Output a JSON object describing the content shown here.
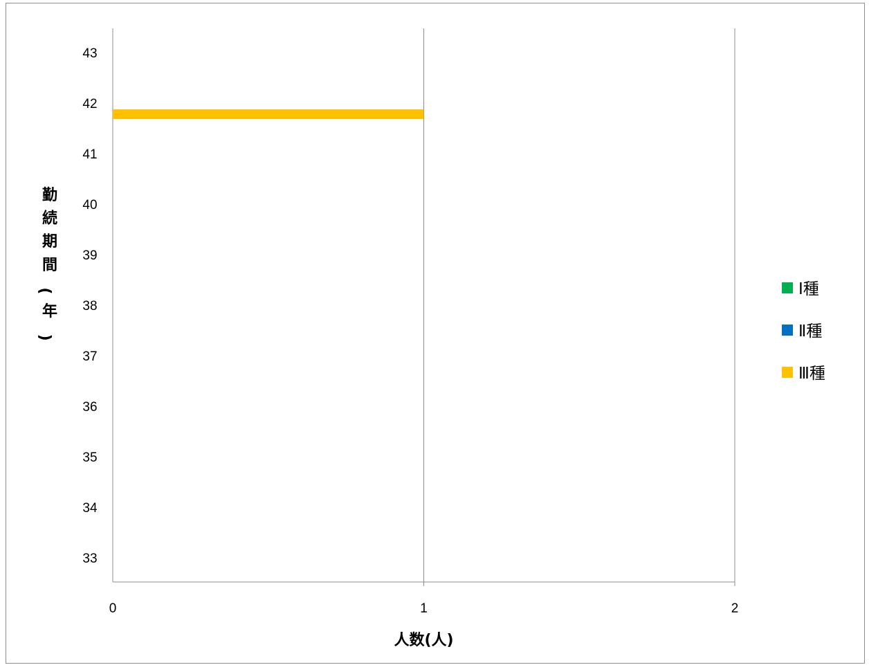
{
  "chart_data": {
    "type": "bar",
    "orientation": "horizontal",
    "stacked": true,
    "xlabel": "人数(人)",
    "ylabel": "勤続期間(年)",
    "xlim": [
      0,
      2
    ],
    "x_ticks": [
      "0",
      "1",
      "2"
    ],
    "categories": [
      "33",
      "34",
      "35",
      "36",
      "37",
      "38",
      "39",
      "40",
      "41",
      "42",
      "43"
    ],
    "series": [
      {
        "name": "Ⅰ種",
        "color": "#00b050",
        "values": [
          0,
          0,
          0,
          0,
          0,
          0,
          0,
          0,
          0,
          0,
          0
        ]
      },
      {
        "name": "Ⅱ種",
        "color": "#0070c0",
        "values": [
          0,
          0,
          0,
          0,
          0,
          0,
          0,
          0,
          0,
          0,
          0
        ]
      },
      {
        "name": "Ⅲ種",
        "color": "#ffc000",
        "values": [
          0,
          0,
          0,
          0,
          0,
          0,
          0,
          0,
          0,
          1,
          0
        ]
      }
    ],
    "bar_offset_years": -0.22,
    "grid": "vertical-major",
    "legend_position": "right"
  }
}
